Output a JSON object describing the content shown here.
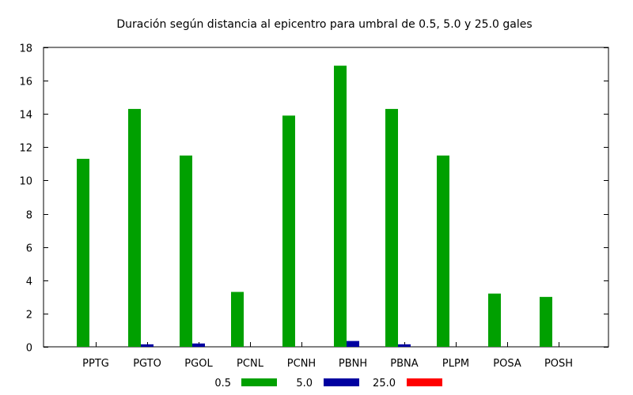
{
  "chart_data": {
    "type": "bar",
    "title": "Duración según distancia al epicentro para umbral de 0.5, 5.0 y 25.0 gales",
    "xlabel": "",
    "ylabel": "",
    "ylim": [
      0,
      18
    ],
    "yticks": [
      0,
      2,
      4,
      6,
      8,
      10,
      12,
      14,
      16,
      18
    ],
    "grid": false,
    "legend_position": "bottom",
    "categories": [
      "PPTG",
      "PGTO",
      "PGOL",
      "PCNL",
      "PCNH",
      "PBNH",
      "PBNA",
      "PLPM",
      "POSA",
      "POSH"
    ],
    "series": [
      {
        "name": "0.5",
        "color": "#00a000",
        "values": [
          11.3,
          14.3,
          11.5,
          3.3,
          13.9,
          16.9,
          14.3,
          11.5,
          3.2,
          3.0
        ]
      },
      {
        "name": "5.0",
        "color": "#0000a0",
        "values": [
          0,
          0.15,
          0.2,
          0,
          0,
          0.35,
          0.15,
          0,
          0,
          0
        ]
      },
      {
        "name": "25.0",
        "color": "#ff0000",
        "values": [
          0,
          0,
          0,
          0,
          0,
          0,
          0,
          0,
          0,
          0
        ]
      }
    ]
  }
}
